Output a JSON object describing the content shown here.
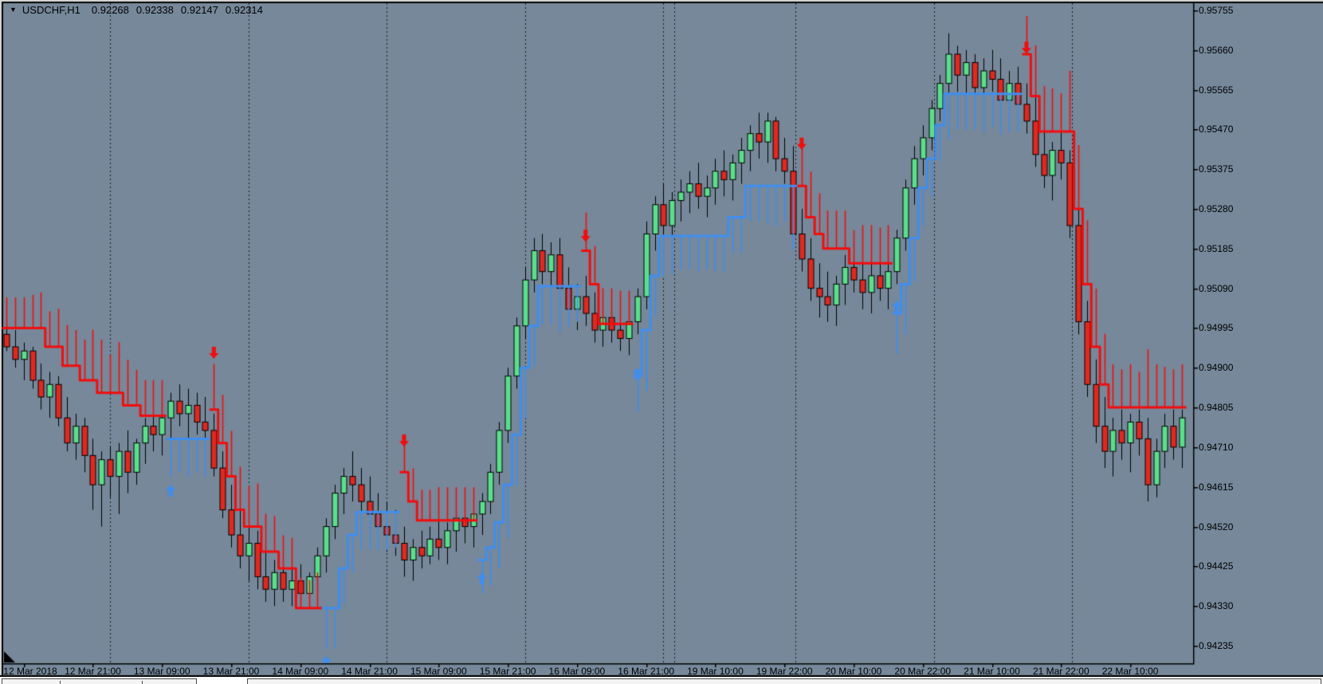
{
  "window": {
    "dropdown_icon": "▼",
    "symbol_period": "USDCHF,H1",
    "ohlc": {
      "open": "0.92268",
      "high": "0.92338",
      "low": "0.92147",
      "close": "0.92314"
    }
  },
  "colors": {
    "background": "#76889A",
    "axis": "#000000",
    "text": "#000000",
    "bull_candle": "#5CDE8C",
    "bear_candle": "#DF2A20",
    "candle_outline": "#000000",
    "trail_up": "#3E8EF0",
    "trail_down": "#F20D0D",
    "arrow_buy": "#3E8EF0",
    "arrow_sell": "#F20D0D",
    "separator": "#1a1a1a"
  },
  "chart_data": {
    "type": "candlestick",
    "title": "USDCHF,H1",
    "symbol": "USDCHF",
    "timeframe": "H1",
    "grid": "day-separators-only",
    "ylim": [
      0.94193,
      0.95772
    ],
    "y_axis": {
      "side": "right",
      "tick_prices": [
        0.95755,
        0.9566,
        0.95565,
        0.9547,
        0.95375,
        0.9528,
        0.95185,
        0.9509,
        0.94995,
        0.949,
        0.94805,
        0.9471,
        0.94615,
        0.9452,
        0.94425,
        0.9433,
        0.94235
      ],
      "tick_labels": [
        "0.95755",
        "0.95660",
        "0.95565",
        "0.95470",
        "0.95375",
        "0.95280",
        "0.95185",
        "0.95090",
        "0.94995",
        "0.94900",
        "0.94805",
        "0.94710",
        "0.94615",
        "0.94520",
        "0.94425",
        "0.94330",
        "0.94235"
      ]
    },
    "x_axis": {
      "side": "bottom",
      "ticks": [
        {
          "bar": 2,
          "label": "12 Mar 2018"
        },
        {
          "bar": 10,
          "label": "12 Mar 21:00"
        },
        {
          "bar": 18,
          "label": "13 Mar 09:00"
        },
        {
          "bar": 26,
          "label": "13 Mar 21:00"
        },
        {
          "bar": 34,
          "label": "14 Mar 09:00"
        },
        {
          "bar": 42,
          "label": "14 Mar 21:00"
        },
        {
          "bar": 50,
          "label": "15 Mar 09:00"
        },
        {
          "bar": 58,
          "label": "15 Mar 21:00"
        },
        {
          "bar": 66,
          "label": "16 Mar 09:00"
        },
        {
          "bar": 74,
          "label": "16 Mar 21:00"
        },
        {
          "bar": 82,
          "label": "19 Mar 10:00"
        },
        {
          "bar": 90,
          "label": "19 Mar 22:00"
        },
        {
          "bar": 98,
          "label": "20 Mar 10:00"
        },
        {
          "bar": 106,
          "label": "20 Mar 22:00"
        },
        {
          "bar": 114,
          "label": "21 Mar 10:00"
        },
        {
          "bar": 122,
          "label": "21 Mar 22:00"
        },
        {
          "bar": 130,
          "label": "22 Mar 10:00"
        }
      ]
    },
    "day_separators": [
      12,
      28,
      44,
      60,
      76,
      77.3,
      91.3,
      107.3,
      123.3
    ],
    "bars": [
      [
        0.9498,
        0.9503,
        0.9494,
        0.9495
      ],
      [
        0.9495,
        0.9499,
        0.949,
        0.9492
      ],
      [
        0.9492,
        0.9496,
        0.9487,
        0.9494
      ],
      [
        0.9494,
        0.9495,
        0.9485,
        0.9487
      ],
      [
        0.9487,
        0.9491,
        0.948,
        0.9483
      ],
      [
        0.9483,
        0.9489,
        0.9478,
        0.9486
      ],
      [
        0.9486,
        0.9488,
        0.9476,
        0.9478
      ],
      [
        0.9478,
        0.9483,
        0.947,
        0.9472
      ],
      [
        0.9472,
        0.9479,
        0.9468,
        0.9476
      ],
      [
        0.9476,
        0.9478,
        0.9465,
        0.9469
      ],
      [
        0.9469,
        0.9473,
        0.9456,
        0.9462
      ],
      [
        0.9462,
        0.947,
        0.9452,
        0.9468
      ],
      [
        0.9468,
        0.9471,
        0.9459,
        0.9464
      ],
      [
        0.9464,
        0.9472,
        0.9455,
        0.947
      ],
      [
        0.947,
        0.9475,
        0.946,
        0.9465
      ],
      [
        0.9465,
        0.9473,
        0.9462,
        0.9472
      ],
      [
        0.9472,
        0.9478,
        0.9467,
        0.9476
      ],
      [
        0.9476,
        0.9481,
        0.947,
        0.9474
      ],
      [
        0.9474,
        0.948,
        0.9469,
        0.9478
      ],
      [
        0.9478,
        0.9484,
        0.9472,
        0.9482
      ],
      [
        0.9482,
        0.9486,
        0.9476,
        0.9479
      ],
      [
        0.9479,
        0.9485,
        0.9473,
        0.9481
      ],
      [
        0.9481,
        0.9484,
        0.9474,
        0.9477
      ],
      [
        0.9477,
        0.9483,
        0.9471,
        0.9475
      ],
      [
        0.9475,
        0.9479,
        0.9464,
        0.9466
      ],
      [
        0.9466,
        0.947,
        0.9454,
        0.9456
      ],
      [
        0.9456,
        0.9462,
        0.9447,
        0.945
      ],
      [
        0.945,
        0.9456,
        0.9442,
        0.9445
      ],
      [
        0.9445,
        0.9452,
        0.9439,
        0.9448
      ],
      [
        0.9448,
        0.9451,
        0.9437,
        0.944
      ],
      [
        0.944,
        0.9446,
        0.9434,
        0.9437
      ],
      [
        0.9437,
        0.9444,
        0.9433,
        0.9441
      ],
      [
        0.9441,
        0.9444,
        0.9434,
        0.9437
      ],
      [
        0.9437,
        0.9442,
        0.9433,
        0.9439
      ],
      [
        0.9439,
        0.9443,
        0.9434,
        0.9436
      ],
      [
        0.9436,
        0.9441,
        0.9433,
        0.944
      ],
      [
        0.944,
        0.9447,
        0.9436,
        0.9445
      ],
      [
        0.9445,
        0.9454,
        0.9441,
        0.9452
      ],
      [
        0.9452,
        0.9462,
        0.9449,
        0.946
      ],
      [
        0.946,
        0.9466,
        0.9455,
        0.9464
      ],
      [
        0.9464,
        0.947,
        0.9458,
        0.9462
      ],
      [
        0.9462,
        0.9466,
        0.9454,
        0.9458
      ],
      [
        0.9458,
        0.9464,
        0.9452,
        0.9455
      ],
      [
        0.9455,
        0.946,
        0.9448,
        0.9452
      ],
      [
        0.9452,
        0.9458,
        0.9446,
        0.945
      ],
      [
        0.945,
        0.9456,
        0.9445,
        0.9448
      ],
      [
        0.9448,
        0.9452,
        0.944,
        0.9444
      ],
      [
        0.9444,
        0.9449,
        0.9439,
        0.9447
      ],
      [
        0.9447,
        0.9451,
        0.9442,
        0.9445
      ],
      [
        0.9445,
        0.9452,
        0.9443,
        0.9449
      ],
      [
        0.9449,
        0.9454,
        0.9444,
        0.9447
      ],
      [
        0.9447,
        0.9453,
        0.9443,
        0.9451
      ],
      [
        0.9451,
        0.9456,
        0.9446,
        0.9454
      ],
      [
        0.9454,
        0.9458,
        0.9448,
        0.9452
      ],
      [
        0.9452,
        0.9457,
        0.9447,
        0.9455
      ],
      [
        0.9455,
        0.946,
        0.945,
        0.9458
      ],
      [
        0.9458,
        0.9467,
        0.9455,
        0.9465
      ],
      [
        0.9465,
        0.9477,
        0.9462,
        0.9475
      ],
      [
        0.9475,
        0.949,
        0.9472,
        0.9488
      ],
      [
        0.9488,
        0.9502,
        0.9485,
        0.95
      ],
      [
        0.95,
        0.9514,
        0.9497,
        0.9511
      ],
      [
        0.9511,
        0.9521,
        0.9508,
        0.9518
      ],
      [
        0.9518,
        0.9522,
        0.951,
        0.9513
      ],
      [
        0.9513,
        0.952,
        0.9508,
        0.9517
      ],
      [
        0.9517,
        0.9521,
        0.9506,
        0.9509
      ],
      [
        0.9509,
        0.9514,
        0.9501,
        0.9504
      ],
      [
        0.9504,
        0.951,
        0.9499,
        0.9507
      ],
      [
        0.9507,
        0.9512,
        0.95,
        0.9503
      ],
      [
        0.9503,
        0.9508,
        0.9496,
        0.9499
      ],
      [
        0.9499,
        0.9506,
        0.9495,
        0.9502
      ],
      [
        0.9502,
        0.9507,
        0.9496,
        0.9499
      ],
      [
        0.9499,
        0.9504,
        0.9494,
        0.9497
      ],
      [
        0.9497,
        0.9503,
        0.9493,
        0.9501
      ],
      [
        0.9501,
        0.9509,
        0.9498,
        0.9507
      ],
      [
        0.9507,
        0.9525,
        0.9504,
        0.9522
      ],
      [
        0.9522,
        0.9531,
        0.9518,
        0.9529
      ],
      [
        0.9529,
        0.9534,
        0.9521,
        0.9524
      ],
      [
        0.9524,
        0.9532,
        0.952,
        0.953
      ],
      [
        0.953,
        0.9535,
        0.9525,
        0.9532
      ],
      [
        0.9532,
        0.9537,
        0.9527,
        0.9534
      ],
      [
        0.9534,
        0.9539,
        0.9528,
        0.9531
      ],
      [
        0.9531,
        0.9536,
        0.9526,
        0.9533
      ],
      [
        0.9533,
        0.954,
        0.9529,
        0.9537
      ],
      [
        0.9537,
        0.9542,
        0.9531,
        0.9535
      ],
      [
        0.9535,
        0.9541,
        0.953,
        0.9539
      ],
      [
        0.9539,
        0.9545,
        0.9534,
        0.9542
      ],
      [
        0.9542,
        0.9548,
        0.9537,
        0.9546
      ],
      [
        0.9546,
        0.9551,
        0.954,
        0.9544
      ],
      [
        0.9544,
        0.9551,
        0.9539,
        0.9549
      ],
      [
        0.9549,
        0.955,
        0.9537,
        0.954
      ],
      [
        0.954,
        0.9545,
        0.9534,
        0.9537
      ],
      [
        0.9537,
        0.9543,
        0.9519,
        0.9522
      ],
      [
        0.9522,
        0.9528,
        0.9513,
        0.9516
      ],
      [
        0.9516,
        0.9521,
        0.9506,
        0.9509
      ],
      [
        0.9509,
        0.9515,
        0.9502,
        0.9507
      ],
      [
        0.9507,
        0.9513,
        0.9501,
        0.9505
      ],
      [
        0.9505,
        0.9512,
        0.95,
        0.951
      ],
      [
        0.951,
        0.9517,
        0.9505,
        0.9514
      ],
      [
        0.9514,
        0.9518,
        0.9508,
        0.9511
      ],
      [
        0.9511,
        0.9516,
        0.9504,
        0.9508
      ],
      [
        0.9508,
        0.9515,
        0.9503,
        0.9512
      ],
      [
        0.9512,
        0.9517,
        0.9506,
        0.9509
      ],
      [
        0.9509,
        0.9516,
        0.9504,
        0.9513
      ],
      [
        0.9513,
        0.9523,
        0.951,
        0.9521
      ],
      [
        0.9521,
        0.9535,
        0.9518,
        0.9533
      ],
      [
        0.9533,
        0.9543,
        0.9529,
        0.954
      ],
      [
        0.954,
        0.9548,
        0.9536,
        0.9545
      ],
      [
        0.9545,
        0.9554,
        0.9542,
        0.9552
      ],
      [
        0.9552,
        0.956,
        0.9549,
        0.9558
      ],
      [
        0.9558,
        0.957,
        0.9555,
        0.9565
      ],
      [
        0.9565,
        0.9567,
        0.9556,
        0.956
      ],
      [
        0.956,
        0.9566,
        0.9555,
        0.9563
      ],
      [
        0.9563,
        0.9565,
        0.9554,
        0.9557
      ],
      [
        0.9557,
        0.9564,
        0.9552,
        0.9561
      ],
      [
        0.9561,
        0.9566,
        0.9556,
        0.9559
      ],
      [
        0.9559,
        0.9564,
        0.9551,
        0.9554
      ],
      [
        0.9554,
        0.9561,
        0.9549,
        0.9558
      ],
      [
        0.9558,
        0.9562,
        0.955,
        0.9553
      ],
      [
        0.9553,
        0.9558,
        0.9546,
        0.9549
      ],
      [
        0.9549,
        0.9555,
        0.9538,
        0.9541
      ],
      [
        0.9541,
        0.9548,
        0.9533,
        0.9536
      ],
      [
        0.9536,
        0.9544,
        0.953,
        0.9542
      ],
      [
        0.9542,
        0.9547,
        0.9535,
        0.9539
      ],
      [
        0.9539,
        0.9542,
        0.9521,
        0.9524
      ],
      [
        0.9524,
        0.9528,
        0.9498,
        0.9501
      ],
      [
        0.9501,
        0.9506,
        0.9483,
        0.9486
      ],
      [
        0.9486,
        0.9492,
        0.9472,
        0.9476
      ],
      [
        0.9476,
        0.9483,
        0.9466,
        0.947
      ],
      [
        0.947,
        0.9478,
        0.9464,
        0.9475
      ],
      [
        0.9475,
        0.948,
        0.9468,
        0.9472
      ],
      [
        0.9472,
        0.9479,
        0.9465,
        0.9477
      ],
      [
        0.9477,
        0.948,
        0.9469,
        0.9473
      ],
      [
        0.9473,
        0.9478,
        0.9458,
        0.9462
      ],
      [
        0.9462,
        0.9473,
        0.9459,
        0.947
      ],
      [
        0.947,
        0.9479,
        0.9466,
        0.9476
      ],
      [
        0.9476,
        0.948,
        0.9468,
        0.9471
      ],
      [
        0.9471,
        0.948,
        0.9466,
        0.9478
      ]
    ],
    "trail_segments": [
      [
        0,
        4,
        0.94995,
        "r"
      ],
      [
        5,
        6,
        0.9495,
        "r"
      ],
      [
        7,
        8,
        0.94905,
        "r"
      ],
      [
        9,
        10,
        0.9487,
        "r"
      ],
      [
        11,
        13,
        0.9484,
        "r"
      ],
      [
        14,
        15,
        0.9481,
        "r"
      ],
      [
        16,
        18,
        0.94785,
        "r"
      ],
      [
        19,
        23,
        0.9473,
        "b"
      ],
      [
        24,
        24,
        0.948,
        "r"
      ],
      [
        25,
        25,
        0.9472,
        "r"
      ],
      [
        26,
        26,
        0.9464,
        "r"
      ],
      [
        27,
        27,
        0.9456,
        "r"
      ],
      [
        28,
        29,
        0.9452,
        "r"
      ],
      [
        30,
        31,
        0.9446,
        "r"
      ],
      [
        32,
        33,
        0.9442,
        "r"
      ],
      [
        34,
        36,
        0.94325,
        "r"
      ],
      [
        37,
        38,
        0.94325,
        "b"
      ],
      [
        39,
        39,
        0.9442,
        "b"
      ],
      [
        40,
        40,
        0.945,
        "b"
      ],
      [
        41,
        45,
        0.94555,
        "b"
      ],
      [
        46,
        46,
        0.9465,
        "r"
      ],
      [
        47,
        47,
        0.9458,
        "r"
      ],
      [
        48,
        54,
        0.94535,
        "r"
      ],
      [
        55,
        55,
        0.9444,
        "b"
      ],
      [
        56,
        56,
        0.9447,
        "b"
      ],
      [
        57,
        57,
        0.9453,
        "b"
      ],
      [
        58,
        58,
        0.9462,
        "b"
      ],
      [
        59,
        59,
        0.9474,
        "b"
      ],
      [
        60,
        60,
        0.949,
        "b"
      ],
      [
        61,
        61,
        0.95,
        "b"
      ],
      [
        62,
        66,
        0.95095,
        "b"
      ],
      [
        67,
        67,
        0.9518,
        "r"
      ],
      [
        68,
        68,
        0.951,
        "r"
      ],
      [
        69,
        72,
        0.95005,
        "r"
      ],
      [
        73,
        73,
        0.9488,
        "b"
      ],
      [
        74,
        74,
        0.9499,
        "b"
      ],
      [
        75,
        75,
        0.9512,
        "b"
      ],
      [
        76,
        83,
        0.95215,
        "b"
      ],
      [
        84,
        85,
        0.9526,
        "b"
      ],
      [
        86,
        91,
        0.95335,
        "b"
      ],
      [
        92,
        92,
        0.95335,
        "r"
      ],
      [
        93,
        93,
        0.9526,
        "r"
      ],
      [
        94,
        94,
        0.9522,
        "r"
      ],
      [
        95,
        97,
        0.95185,
        "r"
      ],
      [
        98,
        102,
        0.9515,
        "r"
      ],
      [
        103,
        103,
        0.9503,
        "b"
      ],
      [
        104,
        104,
        0.951,
        "b"
      ],
      [
        105,
        105,
        0.9521,
        "b"
      ],
      [
        106,
        106,
        0.9533,
        "b"
      ],
      [
        107,
        107,
        0.954,
        "b"
      ],
      [
        108,
        108,
        0.9548,
        "b"
      ],
      [
        109,
        117,
        0.95555,
        "b"
      ],
      [
        118,
        118,
        0.9565,
        "r"
      ],
      [
        119,
        119,
        0.9555,
        "r"
      ],
      [
        120,
        123,
        0.95465,
        "r"
      ],
      [
        124,
        124,
        0.9528,
        "r"
      ],
      [
        125,
        125,
        0.951,
        "r"
      ],
      [
        126,
        126,
        0.9495,
        "r"
      ],
      [
        127,
        127,
        0.9486,
        "r"
      ],
      [
        128,
        136,
        0.94805,
        "r"
      ]
    ],
    "arrows": [
      {
        "bar": 19,
        "price": 0.9462,
        "dir": "up"
      },
      {
        "bar": 24,
        "price": 0.9495,
        "dir": "down"
      },
      {
        "bar": 37,
        "price": 0.9421,
        "dir": "up"
      },
      {
        "bar": 46,
        "price": 0.9474,
        "dir": "down"
      },
      {
        "bar": 55,
        "price": 0.9441,
        "dir": "up"
      },
      {
        "bar": 67,
        "price": 0.9523,
        "dir": "down"
      },
      {
        "bar": 73,
        "price": 0.949,
        "dir": "up"
      },
      {
        "bar": 92,
        "price": 0.9545,
        "dir": "down"
      },
      {
        "bar": 103,
        "price": 0.9506,
        "dir": "up"
      },
      {
        "bar": 118,
        "price": 0.9568,
        "dir": "down"
      }
    ]
  }
}
